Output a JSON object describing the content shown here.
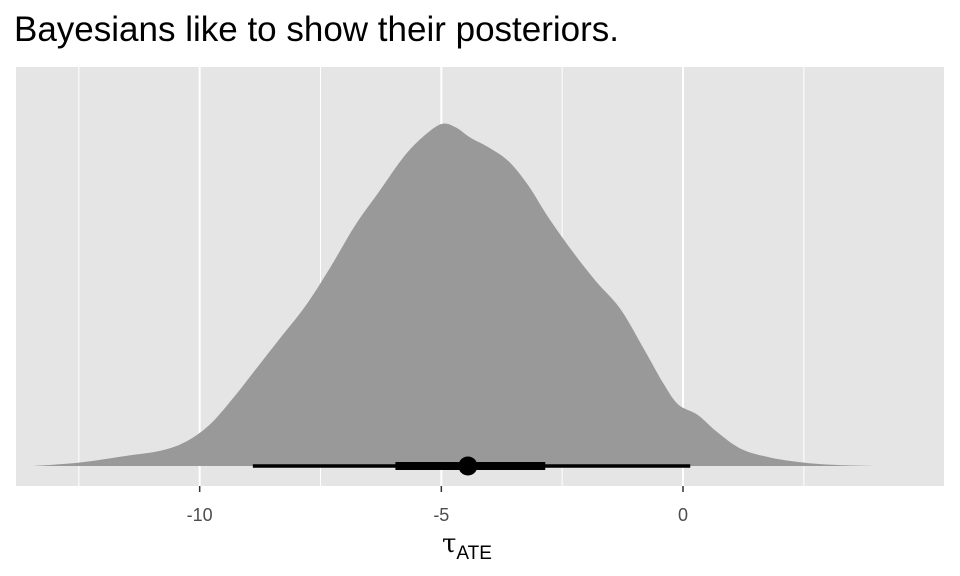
{
  "chart_data": {
    "type": "area",
    "title": "Bayesians like to show their posteriors.",
    "xlabel": {
      "symbol": "τ",
      "subscript": "ATE"
    },
    "ylabel": "",
    "xlim": [
      -13.8,
      5.4
    ],
    "ylim": [
      0,
      1.05
    ],
    "x_ticks": [
      -10,
      -5,
      0
    ],
    "x_tick_labels": [
      "-10",
      "-5",
      "0"
    ],
    "y_axis_visible": false,
    "grid": true,
    "grid_color": "#ffffff",
    "panel_background": "#e5e5e5",
    "density_fill": "#999999",
    "density": {
      "x": [
        -13.45,
        -12.5,
        -11.5,
        -10.8,
        -10.3,
        -9.8,
        -9.3,
        -8.8,
        -8.3,
        -7.8,
        -7.3,
        -6.8,
        -6.3,
        -5.8,
        -5.4,
        -5.0,
        -4.7,
        -4.4,
        -4.0,
        -3.6,
        -3.2,
        -2.8,
        -2.3,
        -1.8,
        -1.3,
        -0.8,
        -0.4,
        -0.1,
        0.3,
        0.7,
        1.2,
        1.8,
        2.5,
        3.2,
        4.0
      ],
      "y": [
        0.0,
        0.01,
        0.03,
        0.045,
        0.07,
        0.12,
        0.2,
        0.29,
        0.38,
        0.47,
        0.58,
        0.7,
        0.8,
        0.9,
        0.96,
        1.0,
        0.99,
        0.96,
        0.93,
        0.89,
        0.82,
        0.73,
        0.63,
        0.54,
        0.46,
        0.34,
        0.24,
        0.18,
        0.15,
        0.1,
        0.05,
        0.025,
        0.01,
        0.003,
        0.0
      ]
    },
    "point_interval": {
      "median": -4.45,
      "interval_66": [
        -5.95,
        -2.85
      ],
      "interval_95": [
        -8.9,
        0.15
      ]
    }
  }
}
